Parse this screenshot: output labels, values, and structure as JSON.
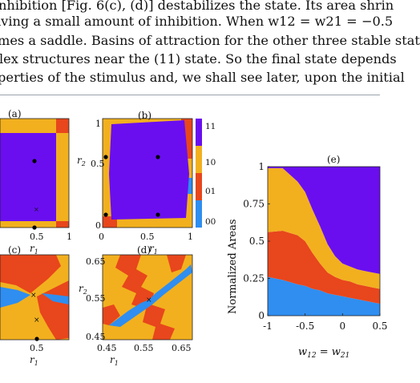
{
  "text": {
    "lines": [
      "nhibition [Fig. 6(c), (d)] destabilizes the state. Its area shrin",
      "iving a small amount of inhibition. When w12 = w21 = −0.5",
      "mes a saddle. Basins of attraction for the other three stable stat",
      "lex structures near the (11) state. So the final state depends",
      "perties of the stimulus and, we shall see later, upon the initial"
    ]
  },
  "colors": {
    "s11": "#6a0ef0",
    "s10": "#f2b01e",
    "s01": "#e8461c",
    "s00": "#2f8ef0"
  },
  "figure": {
    "panel_a": {
      "label": "(a)",
      "xticks": [
        "0.5",
        "1"
      ],
      "xlabel": "r1"
    },
    "panel_b": {
      "label": "(b)",
      "xticks": [
        "0",
        "0.5",
        "1"
      ],
      "yticks": [
        "1",
        "0.5",
        "0"
      ],
      "xlabel": "r1",
      "ylabel": "r2"
    },
    "colorbar": {
      "labels": [
        "11",
        "10",
        "01",
        "00"
      ]
    },
    "panel_c": {
      "label": "(c)",
      "xticks": [
        "0.5"
      ],
      "xlabel": "r1"
    },
    "panel_d": {
      "label": "(d)",
      "xticks": [
        "0.45",
        "0.55",
        "0.65"
      ],
      "yticks": [
        "0.65",
        "0.55",
        "0.45"
      ],
      "xlabel": "r1",
      "ylabel": "r2"
    },
    "panel_e": {
      "label": "(e)",
      "ylabel": "Normalized Areas",
      "xlabel": "w12 = w21"
    }
  },
  "chart_data": {
    "type": "area",
    "title": "",
    "xlabel": "w12 = w21",
    "ylabel": "Normalized Areas",
    "xlim": [
      -1,
      0.5
    ],
    "ylim": [
      0,
      1
    ],
    "x_ticks": [
      "-1",
      "-0.5",
      "0",
      "0.5"
    ],
    "y_ticks": [
      "0",
      "0.25",
      "0.5",
      "0.75",
      "1"
    ],
    "x": [
      -1,
      -0.8,
      -0.6,
      -0.5,
      -0.4,
      -0.3,
      -0.2,
      -0.1,
      0,
      0.1,
      0.2,
      0.3,
      0.4,
      0.5
    ],
    "series": [
      {
        "name": "00",
        "values": [
          0.26,
          0.24,
          0.21,
          0.2,
          0.18,
          0.17,
          0.15,
          0.14,
          0.13,
          0.12,
          0.11,
          0.1,
          0.09,
          0.08
        ]
      },
      {
        "name": "01",
        "values": [
          0.3,
          0.33,
          0.33,
          0.3,
          0.24,
          0.18,
          0.14,
          0.12,
          0.11,
          0.11,
          0.1,
          0.1,
          0.1,
          0.1
        ]
      },
      {
        "name": "10",
        "values": [
          0.43,
          0.42,
          0.36,
          0.33,
          0.29,
          0.25,
          0.19,
          0.14,
          0.11,
          0.1,
          0.1,
          0.1,
          0.1,
          0.1
        ]
      },
      {
        "name": "11",
        "values": [
          0.01,
          0.01,
          0.1,
          0.17,
          0.29,
          0.4,
          0.52,
          0.6,
          0.65,
          0.67,
          0.69,
          0.7,
          0.71,
          0.72
        ]
      }
    ]
  }
}
